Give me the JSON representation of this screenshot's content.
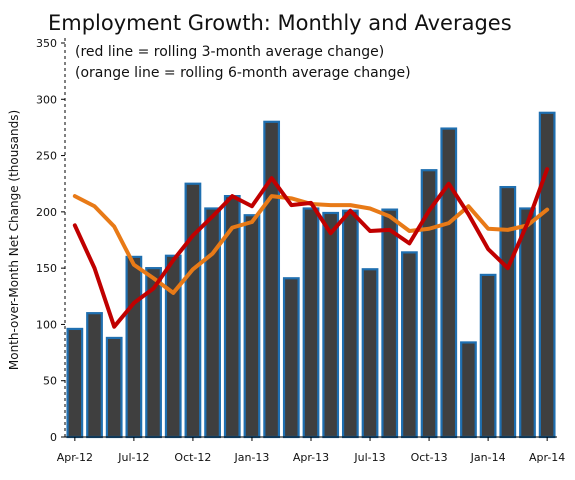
{
  "chart_data": {
    "type": "bar",
    "title": "Employment Growth: Monthly and Averages",
    "subtitle_lines": [
      "(red line = rolling  3-month average change)",
      "(orange line = rolling 6-month average change)"
    ],
    "ylabel": "Month-over-Month Net Change (thousands)",
    "xlabel": "",
    "ylim": [
      0,
      350
    ],
    "yticks": [
      0,
      50,
      100,
      150,
      200,
      250,
      300,
      350
    ],
    "categories": [
      "Apr-12",
      "May-12",
      "Jun-12",
      "Jul-12",
      "Aug-12",
      "Sep-12",
      "Oct-12",
      "Nov-12",
      "Dec-12",
      "Jan-13",
      "Feb-13",
      "Mar-13",
      "Apr-13",
      "May-13",
      "Jun-13",
      "Jul-13",
      "Aug-13",
      "Sep-13",
      "Oct-13",
      "Nov-13",
      "Dec-13",
      "Jan-14",
      "Feb-14",
      "Mar-14",
      "Apr-14"
    ],
    "xtick_labels": [
      "Apr-12",
      "Jul-12",
      "Oct-12",
      "Jan-13",
      "Apr-13",
      "Jul-13",
      "Oct-13",
      "Jan-14",
      "Apr-14"
    ],
    "grid": false,
    "series": [
      {
        "kind": "bar",
        "values": [
          96,
          110,
          88,
          160,
          150,
          161,
          225,
          203,
          214,
          197,
          280,
          141,
          203,
          199,
          201,
          149,
          202,
          164,
          237,
          274,
          84,
          144,
          222,
          203,
          288
        ]
      },
      {
        "kind": "line",
        "values": [
          188,
          150,
          98,
          119,
          132,
          157,
          179,
          196,
          214,
          205,
          230,
          206,
          208,
          181,
          201,
          183,
          184,
          172,
          201,
          225,
          198,
          167,
          150,
          190,
          238
        ]
      },
      {
        "kind": "line",
        "values": [
          214,
          205,
          187,
          153,
          141,
          128,
          149,
          163,
          186,
          191,
          214,
          212,
          207,
          206,
          206,
          203,
          196,
          183,
          185,
          190,
          205,
          185,
          184,
          188,
          202
        ]
      }
    ],
    "colors": {
      "bar_fill": "#3f3f3f",
      "bar_edge": "#1f6fb0",
      "line_3mo": "#c00000",
      "line_6mo": "#e87a17",
      "axis": "#000000"
    }
  }
}
